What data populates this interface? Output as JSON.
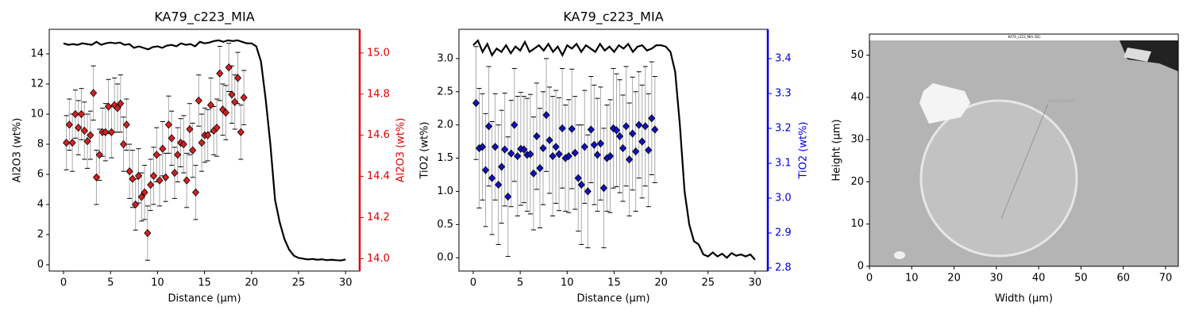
{
  "chart_data": [
    {
      "type": "line-errorbar",
      "title": "KA79_c223_MIA",
      "xlabel": "Distance (µm)",
      "ylabel": "Al2O3 (wt%)",
      "y2label": "Al2O3 (wt%)",
      "y2color": "#e00000",
      "xlim": [
        -1.52,
        31.5
      ],
      "ylim": [
        -0.42,
        15.63
      ],
      "y2lim": [
        13.94,
        15.115
      ],
      "xticks": [
        0,
        5,
        10,
        15,
        20,
        25,
        30
      ],
      "yticks": [
        0,
        2,
        4,
        6,
        8,
        10,
        12,
        14
      ],
      "y2ticks": [
        {
          "value": 14.0,
          "label": "14.0"
        },
        14.2,
        14.4,
        14.6,
        14.8,
        {
          "value": 15.0,
          "label": "15.0"
        }
      ],
      "series": [
        {
          "color": "#000000",
          "x": [
            0,
            0.5,
            1,
            1.5,
            2,
            2.5,
            3,
            3.5,
            4,
            4.5,
            5,
            5.5,
            6,
            6.5,
            7,
            7.5,
            8,
            8.5,
            9,
            9.5,
            10,
            10.5,
            11,
            11.5,
            12,
            12.5,
            13,
            13.5,
            14,
            14.5,
            15,
            15.5,
            16,
            16.5,
            17,
            17.5,
            18,
            18.5,
            19,
            19.5,
            20,
            20.5,
            21,
            21.5,
            22,
            22.5,
            23,
            23.5,
            24,
            24.5,
            25,
            25.5,
            26,
            26.5,
            27,
            27.5,
            28,
            28.5,
            29,
            29.5,
            30
          ],
          "values": [
            14.7,
            14.6,
            14.65,
            14.6,
            14.7,
            14.65,
            14.6,
            14.8,
            14.6,
            14.7,
            14.75,
            14.7,
            14.75,
            14.6,
            14.65,
            14.4,
            14.5,
            14.4,
            14.3,
            14.45,
            14.5,
            14.4,
            14.55,
            14.6,
            14.5,
            14.7,
            14.6,
            14.65,
            14.5,
            14.8,
            14.7,
            14.75,
            14.85,
            14.9,
            14.8,
            14.9,
            14.85,
            14.9,
            14.8,
            14.7,
            14.7,
            14.5,
            13.5,
            11,
            8,
            4.3,
            2.8,
            1.7,
            1,
            0.6,
            0.45,
            0.4,
            0.35,
            0.38,
            0.33,
            0.36,
            0.3,
            0.33,
            0.3,
            0.28,
            0.35
          ]
        },
        {
          "color": "#d62020",
          "marker": "diamond",
          "x": [
            0.3,
            0.62,
            0.94,
            1.26,
            1.58,
            1.9,
            2.22,
            2.54,
            2.86,
            3.18,
            3.5,
            3.82,
            4.14,
            4.46,
            4.78,
            5.1,
            5.42,
            5.74,
            6.06,
            6.38,
            6.7,
            7.02,
            7.34,
            7.66,
            7.98,
            8.3,
            8.62,
            8.94,
            9.26,
            9.58,
            9.9,
            10.22,
            10.54,
            10.86,
            11.18,
            11.5,
            11.82,
            12.14,
            12.46,
            12.78,
            13.1,
            13.42,
            13.74,
            14.06,
            14.38,
            14.7,
            15.02,
            15.34,
            15.66,
            15.98,
            16.3,
            16.62,
            16.94,
            17.26,
            17.58,
            17.9,
            18.22,
            18.54,
            18.86,
            19.18
          ],
          "values": [
            8.1,
            9.3,
            8.1,
            10.0,
            9.1,
            10.0,
            8.9,
            8.2,
            8.6,
            11.4,
            5.8,
            7.3,
            8.8,
            8.8,
            10.5,
            8.8,
            10.6,
            10.4,
            10.7,
            8.0,
            9.3,
            6.2,
            5.7,
            4.0,
            5.9,
            4.5,
            4.8,
            2.1,
            5.3,
            5.9,
            7.3,
            5.6,
            7.7,
            5.8,
            9.3,
            8.4,
            6.1,
            7.3,
            8.1,
            8.0,
            5.6,
            9.0,
            7.6,
            4.8,
            10.9,
            8.1,
            8.6,
            8.6,
            10.6,
            8.9,
            9.1,
            12.7,
            10.3,
            10.1,
            13.1,
            11.3,
            10.8,
            12.4,
            8.8,
            11.1
          ],
          "errors": [
            1.8,
            1.7,
            1.9,
            1.6,
            1.8,
            1.7,
            1.9,
            1.8,
            1.6,
            1.8,
            1.8,
            1.7,
            1.6,
            1.9,
            1.8,
            1.7,
            1.8,
            1.6,
            1.9,
            1.8,
            1.7,
            1.8,
            1.9,
            1.7,
            1.8,
            1.6,
            1.8,
            1.8,
            1.7,
            1.9,
            1.8,
            1.7,
            1.8,
            1.6,
            1.9,
            1.8,
            1.7,
            1.8,
            1.6,
            1.9,
            1.8,
            1.7,
            1.8,
            1.8,
            1.7,
            1.9,
            1.8,
            1.7,
            1.8,
            1.6,
            1.9,
            1.8,
            1.7,
            1.8,
            1.6,
            1.9,
            1.8,
            1.7,
            1.8,
            1.8
          ]
        }
      ]
    },
    {
      "type": "line-errorbar",
      "title": "KA79_c223_MIA",
      "xlabel": "Distance (µm)",
      "ylabel": "TiO2 (wt%)",
      "y2label": "TiO2 (wt%)",
      "y2color": "#0000e0",
      "xlim": [
        -1.52,
        31.36
      ],
      "ylim": [
        -0.2,
        3.44
      ],
      "y2lim": [
        2.791,
        3.484
      ],
      "xticks": [
        0,
        5,
        10,
        15,
        20,
        25,
        30
      ],
      "yticks": [
        {
          "value": 0.0,
          "label": "0.0"
        },
        0.5,
        {
          "value": 1.0,
          "label": "1.0"
        },
        1.5,
        {
          "value": 2.0,
          "label": "2.0"
        },
        2.5,
        {
          "value": 3.0,
          "label": "3.0"
        }
      ],
      "y2ticks": [
        2.8,
        2.9,
        {
          "value": 3.0,
          "label": "3.0"
        },
        3.1,
        3.2,
        3.3,
        3.4
      ],
      "series": [
        {
          "color": "#000000",
          "x": [
            0,
            0.5,
            1,
            1.5,
            2,
            2.5,
            3,
            3.5,
            4,
            4.5,
            5,
            5.5,
            6,
            6.5,
            7,
            7.5,
            8,
            8.5,
            9,
            9.5,
            10,
            10.5,
            11,
            11.5,
            12,
            12.5,
            13,
            13.5,
            14,
            14.5,
            15,
            15.5,
            16,
            16.5,
            17,
            17.5,
            18,
            18.5,
            19,
            19.5,
            20,
            20.5,
            21,
            21.5,
            22,
            22.5,
            23,
            23.5,
            24,
            24.5,
            25,
            25.5,
            26,
            26.5,
            27,
            27.5,
            28,
            28.5,
            29,
            29.5,
            30
          ],
          "values": [
            3.2,
            3.27,
            3.1,
            3.22,
            3.05,
            3.15,
            3.1,
            3.2,
            3.08,
            3.18,
            3.12,
            3.25,
            3.1,
            3.15,
            3.2,
            3.12,
            3.22,
            3.1,
            3.18,
            3.05,
            3.2,
            3.15,
            3.22,
            3.1,
            3.2,
            3.15,
            3.1,
            3.22,
            3.12,
            3.18,
            3.1,
            3.2,
            3.15,
            3.22,
            3.1,
            3.18,
            3.2,
            3.12,
            3.15,
            3.2,
            3.2,
            3.18,
            3.1,
            2.8,
            2.0,
            1.0,
            0.5,
            0.25,
            0.2,
            0.05,
            0.02,
            0.08,
            0.02,
            0.06,
            0.0,
            0.07,
            0.03,
            0.05,
            0.02,
            0.05,
            -0.03
          ]
        },
        {
          "color": "#1010c0",
          "marker": "diamond",
          "x": [
            0.3,
            0.64,
            0.98,
            1.32,
            1.66,
            2,
            2.34,
            2.68,
            3.02,
            3.36,
            3.7,
            4.04,
            4.38,
            4.72,
            5.06,
            5.4,
            5.74,
            6.08,
            6.42,
            6.76,
            7.1,
            7.44,
            7.78,
            8.12,
            8.46,
            8.8,
            9.14,
            9.48,
            9.82,
            10.16,
            10.5,
            10.84,
            11.18,
            11.52,
            11.86,
            12.2,
            12.54,
            12.88,
            13.22,
            13.56,
            13.9,
            14.24,
            14.58,
            14.92,
            15.26,
            15.6,
            15.94,
            16.28,
            16.62,
            16.96,
            17.3,
            17.64,
            17.98,
            18.32,
            18.66,
            19,
            19.34
          ],
          "values": [
            2.33,
            1.65,
            1.67,
            1.32,
            1.98,
            1.2,
            1.67,
            1.1,
            1.37,
            1.63,
            0.92,
            1.57,
            2.0,
            1.53,
            1.64,
            1.63,
            1.55,
            1.56,
            1.27,
            1.83,
            1.35,
            1.65,
            2.15,
            1.77,
            1.53,
            1.67,
            1.56,
            1.95,
            1.5,
            1.53,
            1.94,
            1.58,
            1.2,
            1.1,
            1.67,
            1.0,
            1.93,
            1.7,
            1.55,
            1.72,
            1.05,
            1.5,
            1.53,
            1.95,
            1.92,
            1.83,
            1.65,
            1.98,
            1.48,
            1.87,
            1.6,
            2.0,
            1.75,
            1.98,
            1.62,
            2.1,
            1.93
          ],
          "errors": [
            0.85,
            0.9,
            0.8,
            0.85,
            0.9,
            0.85,
            0.8,
            0.9,
            0.85,
            0.85,
            0.9,
            0.8,
            0.85,
            0.9,
            0.85,
            0.8,
            0.85,
            0.9,
            0.85,
            0.8,
            0.9,
            0.85,
            0.85,
            0.8,
            0.9,
            0.85,
            0.85,
            0.9,
            0.8,
            0.85,
            0.9,
            0.85,
            0.8,
            0.9,
            0.85,
            0.85,
            0.8,
            0.9,
            0.85,
            0.85,
            0.9,
            0.8,
            0.85,
            0.9,
            0.85,
            0.85,
            0.8,
            0.9,
            0.85,
            0.85,
            0.9,
            0.8,
            0.85,
            0.9,
            0.85,
            0.85,
            0.8
          ]
        }
      ]
    },
    {
      "type": "image",
      "title": "KA79_c223_MIA (SE)",
      "annotation": "KA79_c223_MIA",
      "xlabel": "Width (µm)",
      "ylabel": "Height (µm)",
      "xlim": [
        0,
        73
      ],
      "ylim": [
        0,
        55
      ],
      "xticks": [
        0,
        10,
        20,
        30,
        40,
        50,
        60,
        70
      ],
      "yticks": [
        0,
        10,
        20,
        30,
        40,
        50
      ]
    }
  ]
}
